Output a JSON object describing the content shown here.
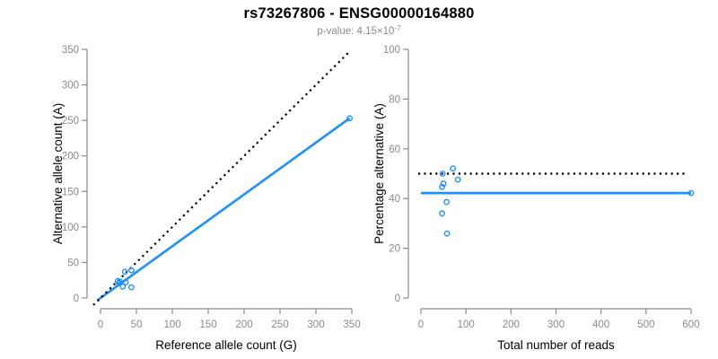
{
  "header": {
    "title": "rs73267806 - ENSG00000164880",
    "p_value": {
      "prefix": "p-value: ",
      "mantissa": "4.15",
      "times": "×10",
      "exponent": "-7"
    }
  },
  "colors": {
    "points": "#1E90FF",
    "fit_line": "#1E90FF",
    "identity_line": "#000000",
    "axis": "#8a8a8a",
    "tick_label": "#8a8a8a",
    "axis_title": "#000000",
    "title": "#000000",
    "subtitle": "#8c8c8c"
  },
  "chart_data": [
    {
      "type": "scatter",
      "title": "",
      "xlabel": "Reference allele count (G)",
      "ylabel": "Alternative allele count (A)",
      "xlim": [
        0,
        350
      ],
      "ylim": [
        0,
        350
      ],
      "xticks": [
        0,
        50,
        100,
        150,
        200,
        250,
        300,
        350
      ],
      "yticks": [
        0,
        50,
        100,
        150,
        200,
        250,
        300,
        350
      ],
      "grid": false,
      "legend": null,
      "points": [
        [
          34,
          37
        ],
        [
          24,
          24
        ],
        [
          43,
          39
        ],
        [
          27,
          23
        ],
        [
          26,
          21
        ],
        [
          35,
          22
        ],
        [
          31,
          16
        ],
        [
          43,
          15
        ],
        [
          347,
          253
        ]
      ],
      "lines": [
        {
          "name": "fit-line",
          "style": "solid",
          "color": "#1E90FF",
          "width": 2.6,
          "from": [
            -4,
            -3
          ],
          "to": [
            347,
            253
          ]
        },
        {
          "name": "identity-line",
          "style": "dotted",
          "color": "#000000",
          "width": 2.2,
          "from": [
            -10,
            -10
          ],
          "to": [
            348,
            348
          ]
        }
      ]
    },
    {
      "type": "scatter",
      "title": "",
      "xlabel": "Total number of reads",
      "ylabel": "Percentage alternative (A)",
      "xlim": [
        0,
        600
      ],
      "ylim": [
        0,
        100
      ],
      "xticks": [
        0,
        100,
        200,
        300,
        400,
        500,
        600
      ],
      "yticks": [
        0,
        20,
        40,
        60,
        80,
        100
      ],
      "grid": false,
      "legend": null,
      "points": [
        [
          71,
          52.1
        ],
        [
          48,
          50
        ],
        [
          82,
          47.6
        ],
        [
          50,
          46
        ],
        [
          47,
          44.7
        ],
        [
          57,
          38.6
        ],
        [
          47,
          34
        ],
        [
          58,
          25.9
        ],
        [
          600,
          42.2
        ]
      ],
      "lines": [
        {
          "name": "mean-pct-line",
          "style": "solid",
          "color": "#1E90FF",
          "width": 2.8,
          "from": [
            0,
            42.2
          ],
          "to": [
            600,
            42.2
          ]
        },
        {
          "name": "expected-50pct-line",
          "style": "dotted",
          "color": "#000000",
          "width": 2.2,
          "from": [
            -6,
            50
          ],
          "to": [
            590,
            50
          ]
        }
      ]
    }
  ]
}
